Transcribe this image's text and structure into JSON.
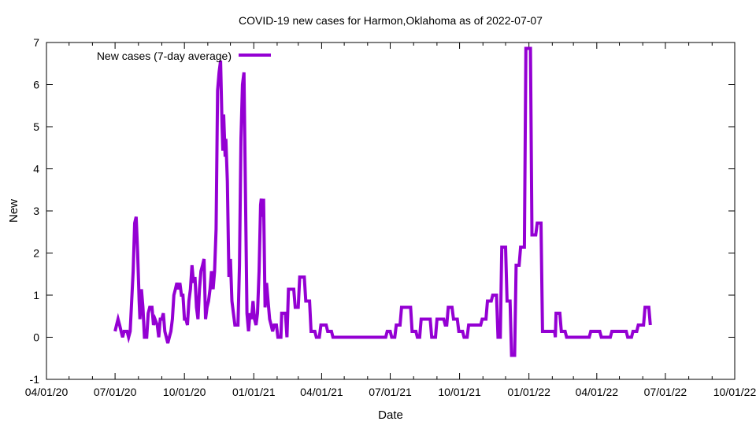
{
  "chart_data": {
    "type": "line",
    "title": "COVID-19 new cases for Harmon,Oklahoma as of 2022-07-07",
    "xlabel": "Date",
    "ylabel": "New",
    "xlim": [
      "2020-04-01",
      "2022-10-01"
    ],
    "ylim": [
      -1,
      7
    ],
    "x_ticks": [
      {
        "date": "2020-04-01",
        "label": "04/01/20"
      },
      {
        "date": "2020-07-01",
        "label": "07/01/20"
      },
      {
        "date": "2020-10-01",
        "label": "10/01/20"
      },
      {
        "date": "2021-01-01",
        "label": "01/01/21"
      },
      {
        "date": "2021-04-01",
        "label": "04/01/21"
      },
      {
        "date": "2021-07-01",
        "label": "07/01/21"
      },
      {
        "date": "2021-10-01",
        "label": "10/01/21"
      },
      {
        "date": "2022-01-01",
        "label": "01/01/22"
      },
      {
        "date": "2022-04-01",
        "label": "04/01/22"
      },
      {
        "date": "2022-07-01",
        "label": "07/01/22"
      },
      {
        "date": "2022-10-01",
        "label": "10/01/22"
      }
    ],
    "y_ticks": [
      -1,
      0,
      1,
      2,
      3,
      4,
      5,
      6,
      7
    ],
    "grid": false,
    "legend": "top-left",
    "series": [
      {
        "name": "New cases (7-day average)",
        "color": "#9400d3",
        "points": [
          [
            "2020-07-01",
            0.14
          ],
          [
            "2020-07-03",
            0.29
          ],
          [
            "2020-07-05",
            0.43
          ],
          [
            "2020-07-07",
            0.29
          ],
          [
            "2020-07-09",
            0.14
          ],
          [
            "2020-07-11",
            0.0
          ],
          [
            "2020-07-13",
            0.14
          ],
          [
            "2020-07-17",
            0.14
          ],
          [
            "2020-07-19",
            0.0
          ],
          [
            "2020-07-21",
            0.14
          ],
          [
            "2020-07-23",
            0.86
          ],
          [
            "2020-07-25",
            1.57
          ],
          [
            "2020-07-27",
            2.71
          ],
          [
            "2020-07-29",
            2.86
          ],
          [
            "2020-07-31",
            2.0
          ],
          [
            "2020-08-02",
            0.86
          ],
          [
            "2020-08-03",
            0.43
          ],
          [
            "2020-08-05",
            1.14
          ],
          [
            "2020-08-07",
            0.71
          ],
          [
            "2020-08-09",
            0.0
          ],
          [
            "2020-08-12",
            0.0
          ],
          [
            "2020-08-14",
            0.57
          ],
          [
            "2020-08-16",
            0.71
          ],
          [
            "2020-08-19",
            0.71
          ],
          [
            "2020-08-21",
            0.29
          ],
          [
            "2020-08-23",
            0.43
          ],
          [
            "2020-08-26",
            0.29
          ],
          [
            "2020-08-28",
            0.0
          ],
          [
            "2020-08-30",
            0.43
          ],
          [
            "2020-09-01",
            0.43
          ],
          [
            "2020-09-03",
            0.57
          ],
          [
            "2020-09-05",
            0.14
          ],
          [
            "2020-09-07",
            0.0
          ],
          [
            "2020-09-09",
            -0.14
          ],
          [
            "2020-09-11",
            0.0
          ],
          [
            "2020-09-13",
            0.14
          ],
          [
            "2020-09-15",
            0.43
          ],
          [
            "2020-09-17",
            1.0
          ],
          [
            "2020-09-19",
            1.14
          ],
          [
            "2020-09-21",
            1.29
          ],
          [
            "2020-09-23",
            1.14
          ],
          [
            "2020-09-25",
            1.29
          ],
          [
            "2020-09-27",
            1.0
          ],
          [
            "2020-09-29",
            1.0
          ],
          [
            "2020-10-01",
            0.43
          ],
          [
            "2020-10-03",
            0.43
          ],
          [
            "2020-10-05",
            0.29
          ],
          [
            "2020-10-07",
            0.86
          ],
          [
            "2020-10-09",
            1.14
          ],
          [
            "2020-10-11",
            1.71
          ],
          [
            "2020-10-13",
            1.29
          ],
          [
            "2020-10-15",
            1.43
          ],
          [
            "2020-10-17",
            0.71
          ],
          [
            "2020-10-19",
            0.43
          ],
          [
            "2020-10-21",
            1.14
          ],
          [
            "2020-10-23",
            1.57
          ],
          [
            "2020-10-25",
            1.71
          ],
          [
            "2020-10-27",
            1.86
          ],
          [
            "2020-10-29",
            0.43
          ],
          [
            "2020-10-31",
            0.71
          ],
          [
            "2020-11-02",
            0.86
          ],
          [
            "2020-11-04",
            1.14
          ],
          [
            "2020-11-06",
            1.57
          ],
          [
            "2020-11-08",
            1.14
          ],
          [
            "2020-11-10",
            1.57
          ],
          [
            "2020-11-12",
            2.57
          ],
          [
            "2020-11-14",
            5.86
          ],
          [
            "2020-11-16",
            6.29
          ],
          [
            "2020-11-18",
            6.57
          ],
          [
            "2020-11-20",
            5.0
          ],
          [
            "2020-11-21",
            4.43
          ],
          [
            "2020-11-22",
            5.29
          ],
          [
            "2020-11-24",
            4.29
          ],
          [
            "2020-11-25",
            4.71
          ],
          [
            "2020-11-27",
            3.71
          ],
          [
            "2020-11-29",
            1.43
          ],
          [
            "2020-12-01",
            1.86
          ],
          [
            "2020-12-03",
            0.86
          ],
          [
            "2020-12-05",
            0.57
          ],
          [
            "2020-12-07",
            0.29
          ],
          [
            "2020-12-11",
            0.29
          ],
          [
            "2020-12-13",
            1.71
          ],
          [
            "2020-12-15",
            4.71
          ],
          [
            "2020-12-17",
            6.0
          ],
          [
            "2020-12-19",
            6.29
          ],
          [
            "2020-12-21",
            3.43
          ],
          [
            "2020-12-23",
            0.57
          ],
          [
            "2020-12-25",
            0.14
          ],
          [
            "2020-12-27",
            0.57
          ],
          [
            "2020-12-29",
            0.43
          ],
          [
            "2020-12-31",
            0.86
          ],
          [
            "2021-01-02",
            0.43
          ],
          [
            "2021-01-04",
            0.29
          ],
          [
            "2021-01-06",
            0.57
          ],
          [
            "2021-01-08",
            1.57
          ],
          [
            "2021-01-10",
            3.14
          ],
          [
            "2021-01-11",
            3.29
          ],
          [
            "2021-01-13",
            2.86
          ],
          [
            "2021-01-14",
            3.29
          ],
          [
            "2021-01-16",
            0.71
          ],
          [
            "2021-01-18",
            1.29
          ],
          [
            "2021-01-20",
            0.86
          ],
          [
            "2021-01-22",
            0.43
          ],
          [
            "2021-01-24",
            0.29
          ],
          [
            "2021-01-26",
            0.14
          ],
          [
            "2021-01-28",
            0.29
          ],
          [
            "2021-01-31",
            0.29
          ],
          [
            "2021-02-02",
            0.0
          ],
          [
            "2021-02-06",
            0.0
          ],
          [
            "2021-02-07",
            0.57
          ],
          [
            "2021-02-12",
            0.57
          ],
          [
            "2021-02-14",
            0.0
          ],
          [
            "2021-02-16",
            1.14
          ],
          [
            "2021-02-23",
            1.14
          ],
          [
            "2021-02-25",
            0.71
          ],
          [
            "2021-03-01",
            0.71
          ],
          [
            "2021-03-03",
            1.43
          ],
          [
            "2021-03-09",
            1.43
          ],
          [
            "2021-03-11",
            0.86
          ],
          [
            "2021-03-16",
            0.86
          ],
          [
            "2021-03-18",
            0.14
          ],
          [
            "2021-03-23",
            0.14
          ],
          [
            "2021-03-25",
            0.0
          ],
          [
            "2021-03-29",
            0.0
          ],
          [
            "2021-03-31",
            0.29
          ],
          [
            "2021-04-07",
            0.29
          ],
          [
            "2021-04-09",
            0.14
          ],
          [
            "2021-04-14",
            0.14
          ],
          [
            "2021-04-16",
            0.0
          ],
          [
            "2021-06-25",
            0.0
          ],
          [
            "2021-06-27",
            0.14
          ],
          [
            "2021-07-01",
            0.14
          ],
          [
            "2021-07-03",
            0.0
          ],
          [
            "2021-07-07",
            0.0
          ],
          [
            "2021-07-09",
            0.29
          ],
          [
            "2021-07-14",
            0.29
          ],
          [
            "2021-07-16",
            0.71
          ],
          [
            "2021-07-28",
            0.71
          ],
          [
            "2021-07-30",
            0.14
          ],
          [
            "2021-08-04",
            0.14
          ],
          [
            "2021-08-06",
            0.0
          ],
          [
            "2021-08-09",
            0.0
          ],
          [
            "2021-08-11",
            0.43
          ],
          [
            "2021-08-23",
            0.43
          ],
          [
            "2021-08-25",
            0.0
          ],
          [
            "2021-08-30",
            0.0
          ],
          [
            "2021-09-01",
            0.43
          ],
          [
            "2021-09-10",
            0.43
          ],
          [
            "2021-09-12",
            0.29
          ],
          [
            "2021-09-14",
            0.29
          ],
          [
            "2021-09-16",
            0.71
          ],
          [
            "2021-09-21",
            0.71
          ],
          [
            "2021-09-23",
            0.43
          ],
          [
            "2021-09-28",
            0.43
          ],
          [
            "2021-09-30",
            0.14
          ],
          [
            "2021-10-05",
            0.14
          ],
          [
            "2021-10-07",
            0.0
          ],
          [
            "2021-10-11",
            0.0
          ],
          [
            "2021-10-13",
            0.29
          ],
          [
            "2021-10-29",
            0.29
          ],
          [
            "2021-10-31",
            0.43
          ],
          [
            "2021-11-05",
            0.43
          ],
          [
            "2021-11-07",
            0.86
          ],
          [
            "2021-11-12",
            0.86
          ],
          [
            "2021-11-14",
            1.0
          ],
          [
            "2021-11-19",
            1.0
          ],
          [
            "2021-11-21",
            0.0
          ],
          [
            "2021-11-24",
            0.0
          ],
          [
            "2021-11-26",
            2.14
          ],
          [
            "2021-12-01",
            2.14
          ],
          [
            "2021-12-03",
            0.86
          ],
          [
            "2021-12-07",
            0.86
          ],
          [
            "2021-12-09",
            -0.43
          ],
          [
            "2021-12-13",
            -0.43
          ],
          [
            "2021-12-15",
            1.71
          ],
          [
            "2021-12-19",
            1.71
          ],
          [
            "2021-12-21",
            2.14
          ],
          [
            "2021-12-26",
            2.14
          ],
          [
            "2021-12-28",
            6.86
          ],
          [
            "2022-01-03",
            6.86
          ],
          [
            "2022-01-05",
            2.43
          ],
          [
            "2022-01-10",
            2.43
          ],
          [
            "2022-01-12",
            2.71
          ],
          [
            "2022-01-17",
            2.71
          ],
          [
            "2022-01-19",
            0.14
          ],
          [
            "2022-02-04",
            0.14
          ],
          [
            "2022-02-05",
            0.0
          ],
          [
            "2022-02-06",
            0.57
          ],
          [
            "2022-02-11",
            0.57
          ],
          [
            "2022-02-13",
            0.14
          ],
          [
            "2022-02-18",
            0.14
          ],
          [
            "2022-02-20",
            0.0
          ],
          [
            "2022-03-22",
            0.0
          ],
          [
            "2022-03-24",
            0.14
          ],
          [
            "2022-04-05",
            0.14
          ],
          [
            "2022-04-07",
            0.0
          ],
          [
            "2022-04-19",
            0.0
          ],
          [
            "2022-04-21",
            0.14
          ],
          [
            "2022-05-10",
            0.14
          ],
          [
            "2022-05-12",
            0.0
          ],
          [
            "2022-05-17",
            0.0
          ],
          [
            "2022-05-19",
            0.14
          ],
          [
            "2022-05-24",
            0.14
          ],
          [
            "2022-05-26",
            0.29
          ],
          [
            "2022-06-02",
            0.29
          ],
          [
            "2022-06-04",
            0.71
          ],
          [
            "2022-06-09",
            0.71
          ],
          [
            "2022-06-11",
            0.29
          ]
        ]
      }
    ]
  }
}
